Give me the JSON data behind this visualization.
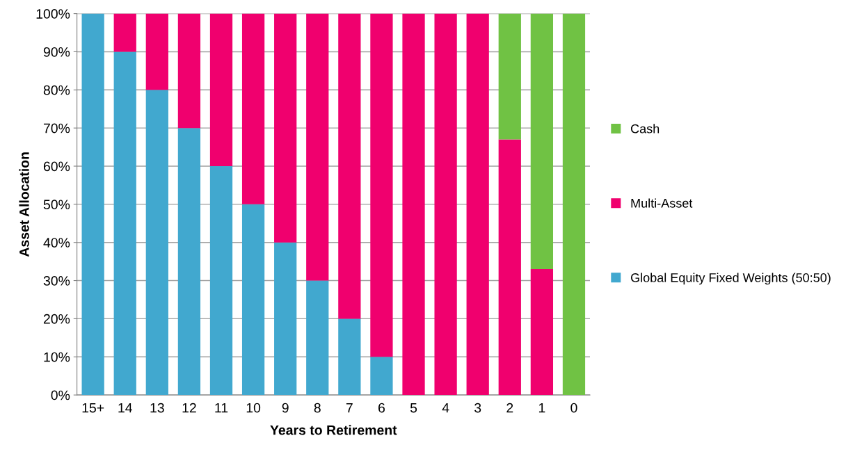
{
  "chart_data": {
    "type": "bar",
    "stacked": true,
    "xlabel": "Years to Retirement",
    "ylabel": "Asset Allocation",
    "categories": [
      "15+",
      "14",
      "13",
      "12",
      "11",
      "10",
      "9",
      "8",
      "7",
      "6",
      "5",
      "4",
      "3",
      "2",
      "1",
      "0"
    ],
    "series": [
      {
        "name": "Global Equity Fixed Weights (50:50)",
        "color": "#41a8cf",
        "values": [
          100,
          90,
          80,
          70,
          60,
          50,
          40,
          30,
          20,
          10,
          0,
          0,
          0,
          0,
          0,
          0
        ]
      },
      {
        "name": "Multi-Asset",
        "color": "#f0006e",
        "values": [
          0,
          10,
          20,
          30,
          40,
          50,
          60,
          70,
          80,
          90,
          100,
          100,
          100,
          67,
          33,
          0
        ]
      },
      {
        "name": "Cash",
        "color": "#70c244",
        "values": [
          0,
          0,
          0,
          0,
          0,
          0,
          0,
          0,
          0,
          0,
          0,
          0,
          0,
          33,
          67,
          100
        ]
      }
    ],
    "ylim": [
      0,
      100
    ],
    "yticks": [
      {
        "value": 0,
        "label": "0%"
      },
      {
        "value": 10,
        "label": "10%"
      },
      {
        "value": 20,
        "label": "20%"
      },
      {
        "value": 30,
        "label": "30%"
      },
      {
        "value": 40,
        "label": "40%"
      },
      {
        "value": 50,
        "label": "50%"
      },
      {
        "value": 60,
        "label": "60%"
      },
      {
        "value": 70,
        "label": "70%"
      },
      {
        "value": 80,
        "label": "80%"
      },
      {
        "value": 90,
        "label": "90%"
      },
      {
        "value": 100,
        "label": "100%"
      }
    ],
    "grid": "y",
    "legend": "right"
  }
}
